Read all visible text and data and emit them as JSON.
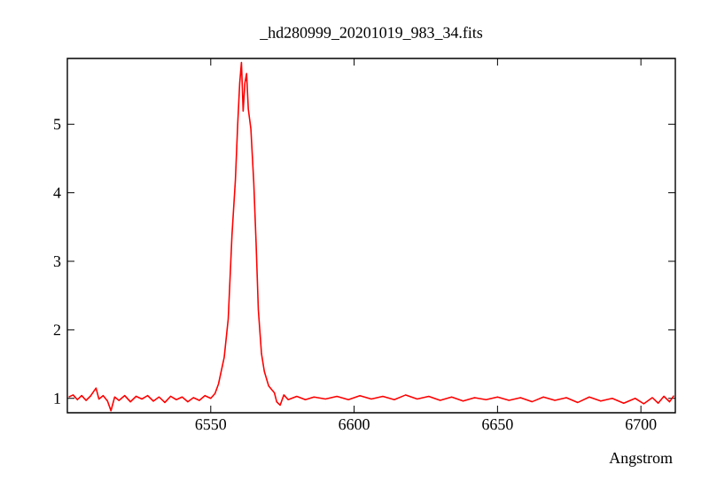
{
  "chart_data": {
    "type": "line",
    "title": "_hd280999_20201019_983_34.fits",
    "xlabel": "Angstrom",
    "x": [
      6500.5,
      6502,
      6503.5,
      6505,
      6506.5,
      6508,
      6510,
      6511,
      6512.5,
      6514,
      6515.2,
      6516.5,
      6518,
      6520,
      6522,
      6524,
      6526,
      6528,
      6530,
      6532,
      6534,
      6536,
      6538,
      6540,
      6542,
      6544,
      6546,
      6548,
      6550,
      6551.5,
      6552.7,
      6554.7,
      6556.1,
      6557.4,
      6558.6,
      6559.4,
      6560.1,
      6560.7,
      6561.3,
      6561.9,
      6562.5,
      6563.1,
      6564.0,
      6565.0,
      6565.8,
      6566.6,
      6567.7,
      6568.7,
      6570.2,
      6572.2,
      6573,
      6574.2,
      6575.5,
      6577,
      6580,
      6583,
      6586,
      6590,
      6594,
      6598,
      6602,
      6606,
      6610,
      6614,
      6618,
      6622,
      6626,
      6630,
      6634,
      6638,
      6642,
      6646,
      6650,
      6654,
      6658,
      6662,
      6666,
      6670,
      6674,
      6678,
      6682,
      6686,
      6690,
      6694,
      6698,
      6701,
      6704,
      6706,
      6708,
      6710,
      6711.5
    ],
    "series": [
      {
        "color": "#ff0000",
        "values": [
          1.02,
          1.05,
          0.98,
          1.04,
          0.97,
          1.03,
          1.15,
          0.99,
          1.04,
          0.96,
          0.82,
          1.02,
          0.97,
          1.04,
          0.95,
          1.03,
          0.99,
          1.04,
          0.96,
          1.02,
          0.94,
          1.03,
          0.98,
          1.02,
          0.95,
          1.01,
          0.97,
          1.04,
          1.0,
          1.07,
          1.21,
          1.6,
          2.16,
          3.38,
          4.19,
          5.0,
          5.6,
          5.9,
          5.19,
          5.6,
          5.74,
          5.22,
          4.93,
          4.15,
          3.28,
          2.29,
          1.65,
          1.39,
          1.18,
          1.08,
          0.95,
          0.9,
          1.05,
          0.98,
          1.03,
          0.98,
          1.02,
          0.99,
          1.03,
          0.98,
          1.04,
          0.99,
          1.03,
          0.98,
          1.05,
          0.99,
          1.03,
          0.97,
          1.02,
          0.96,
          1.01,
          0.98,
          1.02,
          0.97,
          1.01,
          0.95,
          1.02,
          0.97,
          1.01,
          0.94,
          1.02,
          0.96,
          1.0,
          0.93,
          1.0,
          0.92,
          1.01,
          0.93,
          1.03,
          0.95,
          1.04
        ]
      }
    ],
    "xlim": [
      6500,
      6712
    ],
    "ylim": [
      0.79,
      5.96
    ],
    "xticks": [
      6550,
      6600,
      6650,
      6700
    ],
    "yticks": [
      1,
      2,
      3,
      4,
      5
    ]
  }
}
